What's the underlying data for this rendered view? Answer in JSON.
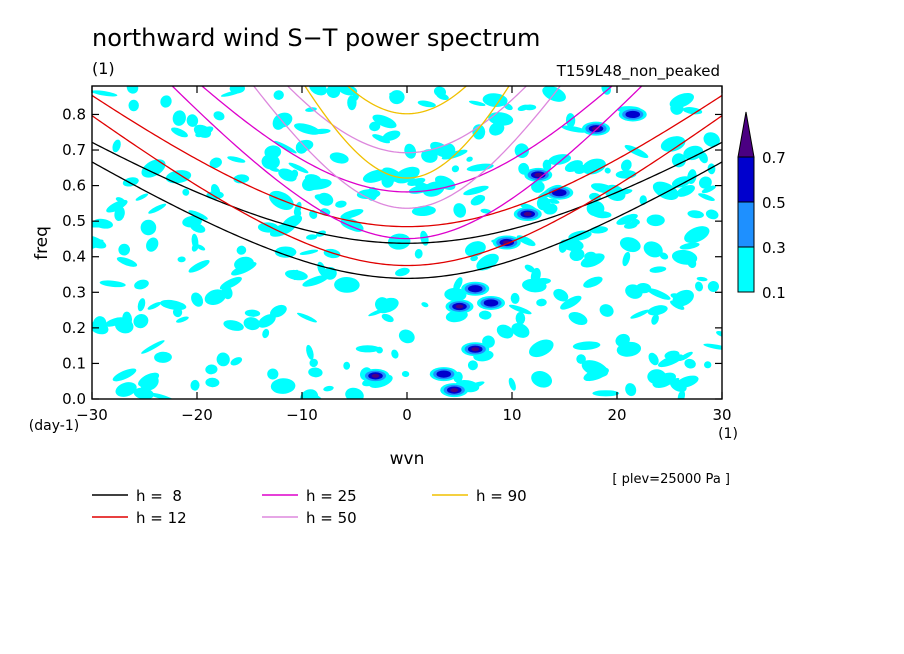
{
  "chart_data": {
    "type": "heatmap",
    "title": "northward wind S−T power spectrum",
    "units_label": "(1)",
    "experiment": "T159L48_non_peaked",
    "xlabel": "wvn",
    "ylabel": "freq",
    "x_unit": "(1)",
    "y_unit": "(day-1)",
    "xlim": [
      -30,
      30
    ],
    "ylim": [
      0.0,
      0.88
    ],
    "x_ticks": [
      -30,
      -20,
      -10,
      0,
      10,
      20,
      30
    ],
    "x_tick_labels": [
      "−30",
      "−20",
      "−10",
      "0",
      "10",
      "20",
      "30"
    ],
    "y_ticks": [
      0.0,
      0.1,
      0.2,
      0.3,
      0.4,
      0.5,
      0.6,
      0.7,
      0.8
    ],
    "y_tick_labels": [
      "0.0",
      "0.1",
      "0.2",
      "0.3",
      "0.4",
      "0.5",
      "0.6",
      "0.7",
      "0.8"
    ],
    "plev_note": "[ plev=25000 Pa ]",
    "colorbar": {
      "levels": [
        "0.1",
        "0.3",
        "0.5",
        "0.7"
      ],
      "colors": [
        "#00ffff",
        "#1e90ff",
        "#0000cd",
        "#4b0082"
      ]
    },
    "contour_blobs": [
      {
        "x": -3.0,
        "y": 0.065,
        "level": 3
      },
      {
        "x": 4.5,
        "y": 0.025,
        "level": 3
      },
      {
        "x": 6.5,
        "y": 0.14,
        "level": 3
      },
      {
        "x": 5.0,
        "y": 0.26,
        "level": 3
      },
      {
        "x": 6.5,
        "y": 0.31,
        "level": 2
      },
      {
        "x": 9.5,
        "y": 0.44,
        "level": 3
      },
      {
        "x": 11.5,
        "y": 0.52,
        "level": 3
      },
      {
        "x": 12.5,
        "y": 0.63,
        "level": 3
      },
      {
        "x": 18.0,
        "y": 0.76,
        "level": 3
      },
      {
        "x": 21.5,
        "y": 0.8,
        "level": 2
      },
      {
        "x": 14.5,
        "y": 0.58,
        "level": 2
      },
      {
        "x": 8.0,
        "y": 0.27,
        "level": 2
      },
      {
        "x": 3.5,
        "y": 0.07,
        "level": 2
      }
    ],
    "series": [
      {
        "name": "h =  8",
        "color": "#000000",
        "modes": [
          "n1_symmetric",
          "n2_asymmetric"
        ]
      },
      {
        "name": "h = 12",
        "color": "#e00000",
        "modes": [
          "n1_symmetric",
          "n2_asymmetric"
        ]
      },
      {
        "name": "h = 25",
        "color": "#dd00cc",
        "modes": [
          "n1_symmetric",
          "n2_asymmetric"
        ]
      },
      {
        "name": "h = 50",
        "color": "#dd88dd",
        "modes": [
          "n1_symmetric",
          "n2_asymmetric"
        ]
      },
      {
        "name": "h = 90",
        "color": "#f0c000",
        "modes": [
          "n1_symmetric",
          "n2_asymmetric"
        ]
      }
    ]
  }
}
